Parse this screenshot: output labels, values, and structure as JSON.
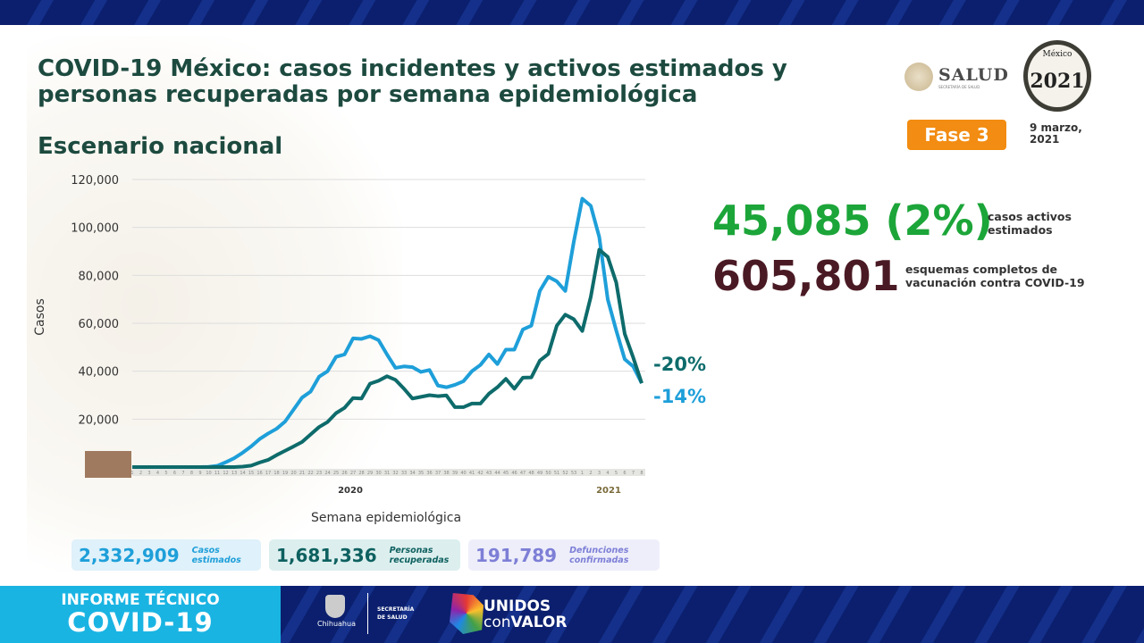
{
  "header": {
    "title_line1": "COVID-19 México: casos incidentes y activos estimados y",
    "title_line2": "personas recuperadas por semana epidemiológica",
    "subtitle": "Escenario nacional"
  },
  "logos": {
    "salud": "SALUD",
    "salud_sub": "SECRETARÍA DE SALUD",
    "year_logo_top": "México",
    "year_logo_year": "2021",
    "year_logo_sub": "Año de la Independencia"
  },
  "phase": "Fase 3",
  "date": "9 marzo, 2021",
  "stats": {
    "active_value": "45,085 (2%)",
    "active_label": "casos activos estimados",
    "vacc_value": "605,801",
    "vacc_label": "esquemas completos de vacunación contra COVID-19"
  },
  "legend": [
    {
      "value": "2,332,909",
      "label": "Casos estimados",
      "color": "#1e9fd9",
      "bg": "#dff1fa"
    },
    {
      "value": "1,681,336",
      "label": "Personas recuperadas",
      "color": "#0e6060",
      "bg": "#dcefee"
    },
    {
      "value": "191,789",
      "label": "Defunciones confirmadas",
      "color": "#7d7fd6",
      "bg": "#eeeefb"
    }
  ],
  "footer": {
    "line1": "INFORME TÉCNICO",
    "line2": "COVID-19",
    "chihuahua": "Chihuahua",
    "secretaria": "SECRETARÍA",
    "de_salud": "DE SALUD",
    "unidos": "UNIDOS",
    "con": "con",
    "valor": "VALOR"
  },
  "chart_data": {
    "type": "line",
    "ylabel": "Casos",
    "xlabel": "Semana epidemiológica",
    "ylim": [
      0,
      120000
    ],
    "yticks": [
      20000,
      40000,
      60000,
      80000,
      100000,
      120000
    ],
    "ytick_labels": [
      "20,000",
      "40,000",
      "60,000",
      "80,000",
      "100,000",
      "120,000"
    ],
    "grid": true,
    "year_labels": [
      "2020",
      "2021"
    ],
    "weeks": [
      1,
      2,
      3,
      4,
      5,
      6,
      7,
      8,
      9,
      10,
      11,
      12,
      13,
      14,
      15,
      16,
      17,
      18,
      19,
      20,
      21,
      22,
      23,
      24,
      25,
      26,
      27,
      28,
      29,
      30,
      31,
      32,
      33,
      34,
      35,
      36,
      37,
      38,
      39,
      40,
      41,
      42,
      43,
      44,
      45,
      46,
      47,
      48,
      49,
      50,
      51,
      52,
      53,
      1,
      2,
      3,
      4,
      5,
      6,
      7,
      8
    ],
    "series": [
      {
        "color": "#1e9fd9",
        "end_label": "-14%",
        "values": [
          0,
          0,
          0,
          0,
          0,
          0,
          0,
          0,
          0,
          100,
          500,
          2000,
          3700,
          6000,
          8600,
          11700,
          14000,
          16000,
          19000,
          24000,
          29000,
          31500,
          37700,
          40000,
          46000,
          47000,
          53700,
          53500,
          54600,
          53000,
          47000,
          41400,
          42000,
          41700,
          39700,
          40500,
          34000,
          33300,
          34300,
          35800,
          40000,
          42600,
          47000,
          43000,
          49000,
          49000,
          57400,
          59000,
          73500,
          79400,
          77500,
          73500,
          94000,
          112000,
          109000,
          96000,
          70000,
          57000,
          45000,
          42000,
          35000
        ]
      },
      {
        "color": "#0e6b6b",
        "end_label": "-20%",
        "values": [
          0,
          0,
          0,
          0,
          0,
          0,
          0,
          0,
          0,
          0,
          0,
          0,
          0,
          200,
          600,
          1900,
          3000,
          5000,
          6800,
          8600,
          10500,
          13600,
          16700,
          18800,
          22500,
          24700,
          28800,
          28600,
          34800,
          36000,
          37900,
          36400,
          32700,
          28600,
          29300,
          30000,
          29600,
          29900,
          25000,
          25000,
          26500,
          26500,
          30600,
          33300,
          36800,
          32700,
          37300,
          37400,
          44400,
          47200,
          59000,
          63600,
          61700,
          56800,
          71000,
          90700,
          87700,
          77000,
          55600,
          45700,
          35000
        ]
      }
    ]
  }
}
